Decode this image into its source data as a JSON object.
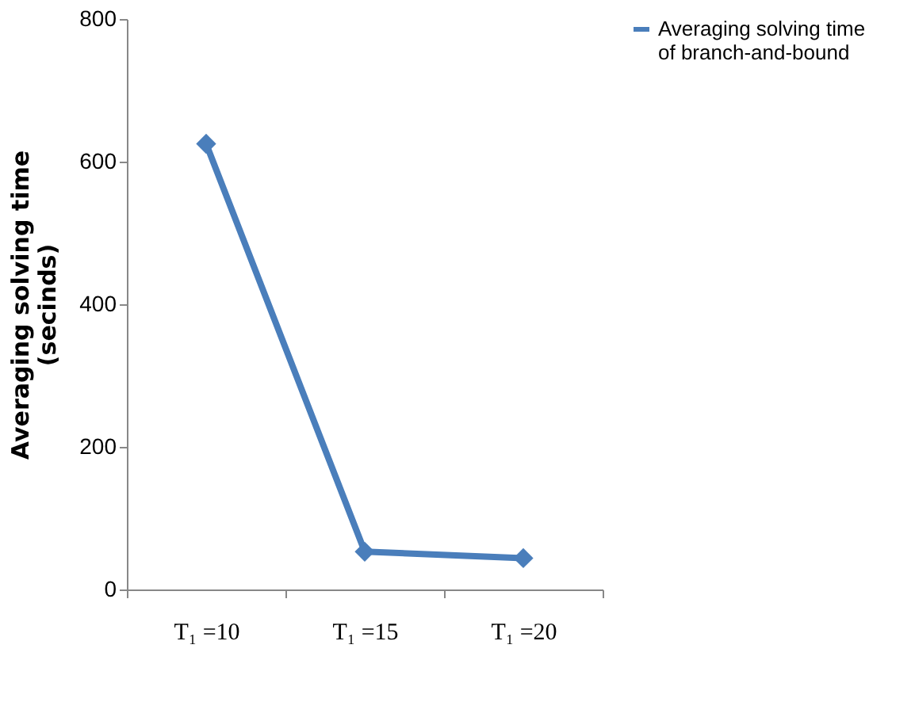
{
  "chart_data": {
    "type": "line",
    "ylabel": "Averaging solving time\n(secinds)",
    "categories": [
      "T₁ =10",
      "T₁ =15",
      "T₁ =20"
    ],
    "series": [
      {
        "name": "Averaging solving time of branch-and-bound",
        "color": "#4a7ebb",
        "values": [
          625,
          53,
          44
        ]
      }
    ],
    "ylim": [
      0,
      800
    ],
    "yticks": [
      0,
      200,
      400,
      600,
      800
    ],
    "grid": false,
    "legend": "right",
    "marker": "diamond",
    "line_style": "solid"
  }
}
